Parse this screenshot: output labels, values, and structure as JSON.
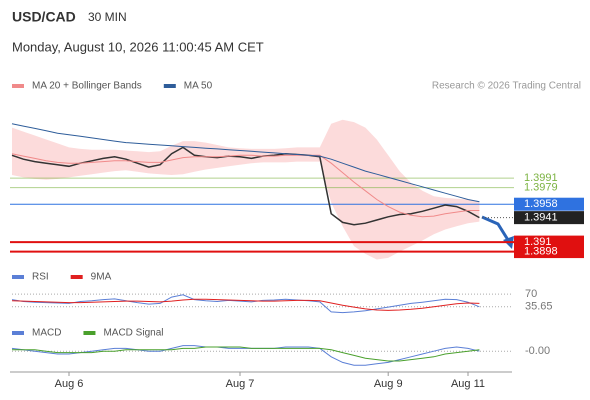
{
  "header": {
    "symbol": "USD/CAD",
    "timeframe": "30 MIN",
    "datetime": "Monday, August 10, 2026 11:00:45 AM CET"
  },
  "chart_data": [
    {
      "type": "line",
      "credit": "Research © 2026 Trading Central",
      "categories": [
        null,
        null,
        null,
        null,
        null,
        "Aug 6",
        null,
        null,
        null,
        null,
        null,
        null,
        null,
        null,
        null,
        null,
        null,
        null,
        null,
        null,
        "Aug 7",
        null,
        null,
        null,
        null,
        null,
        null,
        null,
        null,
        null,
        null,
        null,
        null,
        "Aug 9",
        null,
        null,
        null,
        null,
        null,
        null,
        "Aug 11",
        null
      ],
      "ylim": [
        1.3881,
        1.409
      ],
      "price": {
        "color": "#333333",
        "values": [
          1.402,
          1.4015,
          1.4012,
          1.401,
          1.4008,
          1.4006,
          1.401,
          1.4013,
          1.4016,
          1.4018,
          1.4015,
          1.401,
          1.4005,
          1.4008,
          1.4022,
          1.403,
          1.402,
          1.4018,
          1.4017,
          1.4019,
          1.4018,
          1.4016,
          1.4019,
          1.402,
          1.4022,
          1.4021,
          1.402,
          1.4018,
          1.3946,
          1.3935,
          1.3932,
          1.3934,
          1.3938,
          1.3942,
          1.3945,
          1.3946,
          1.3949,
          1.3953,
          1.3957,
          1.3955,
          1.3949,
          1.3941
        ]
      },
      "bands": {
        "color": "#fcd5d5",
        "upper": [
          1.4055,
          1.405,
          1.4045,
          1.404,
          1.4035,
          1.403,
          1.4028,
          1.4027,
          1.4027,
          1.4027,
          1.4026,
          1.4025,
          1.4024,
          1.4025,
          1.4032,
          1.4038,
          1.4038,
          1.4036,
          1.4033,
          1.403,
          1.4029,
          1.4028,
          1.4028,
          1.4028,
          1.4029,
          1.403,
          1.403,
          1.403,
          1.406,
          1.4065,
          1.4062,
          1.4055,
          1.404,
          1.402,
          1.4,
          1.3985,
          1.3975,
          1.3968,
          1.3966,
          1.3965,
          1.3964,
          1.3962
        ],
        "lower": [
          1.3995,
          1.3992,
          1.399,
          1.3989,
          1.399,
          1.3992,
          1.3994,
          1.3996,
          1.3998,
          1.4,
          1.4001,
          1.3999,
          1.3997,
          1.3996,
          1.3995,
          1.3996,
          1.3999,
          1.4002,
          1.4004,
          1.4006,
          1.4008,
          1.401,
          1.4011,
          1.4011,
          1.4011,
          1.4012,
          1.4012,
          1.4012,
          1.396,
          1.393,
          1.3905,
          1.3895,
          1.3888,
          1.389,
          1.3898,
          1.3905,
          1.3912,
          1.392,
          1.3926,
          1.393,
          1.3934,
          1.3936
        ]
      },
      "series": [
        {
          "name": "MA 20 + Bollinger Bands",
          "color": "#f08a8a",
          "values": [
            1.4022,
            1.4019,
            1.4016,
            1.4013,
            1.4011,
            1.401,
            1.401,
            1.4011,
            1.4012,
            1.4013,
            1.4013,
            1.4012,
            1.4011,
            1.4011,
            1.4014,
            1.4017,
            1.4018,
            1.4018,
            1.4018,
            1.4019,
            1.402,
            1.402,
            1.4019,
            1.4019,
            1.402,
            1.402,
            1.402,
            1.402,
            1.401,
            1.3998,
            1.3986,
            1.3975,
            1.3964,
            1.3955,
            1.3948,
            1.3944,
            1.3942,
            1.3943,
            1.3946,
            1.3948,
            1.395,
            1.395
          ]
        },
        {
          "name": "MA 50",
          "color": "#2e5d9a",
          "values": [
            1.406,
            1.4057,
            1.4054,
            1.4051,
            1.4048,
            1.4046,
            1.4044,
            1.4042,
            1.404,
            1.4038,
            1.4036,
            1.4035,
            1.4034,
            1.4033,
            1.4032,
            1.4031,
            1.403,
            1.4029,
            1.4028,
            1.4027,
            1.4026,
            1.4025,
            1.4024,
            1.4023,
            1.4022,
            1.4021,
            1.402,
            1.4019,
            1.4015,
            1.401,
            1.4005,
            1.4,
            1.3996,
            1.3992,
            1.3988,
            1.3984,
            1.398,
            1.3976,
            1.3972,
            1.3968,
            1.3964,
            1.3961
          ]
        }
      ],
      "levels": [
        {
          "value": 1.3991,
          "color": "#7cb342",
          "style": "text"
        },
        {
          "value": 1.3979,
          "color": "#7cb342",
          "style": "text"
        },
        {
          "value": 1.3958,
          "color": "#2f72e0",
          "style": "box"
        },
        {
          "value": 1.3941,
          "color": "#222222",
          "style": "last"
        },
        {
          "value": 1.391,
          "color": "#e01010",
          "style": "box"
        },
        {
          "value": 1.3898,
          "color": "#e01010",
          "style": "box"
        }
      ]
    },
    {
      "type": "line",
      "ylim": [
        0,
        100
      ],
      "yticks": [
        70,
        35.65
      ],
      "series": [
        {
          "name": "RSI",
          "color": "#5b7fd6",
          "values": [
            55,
            50,
            48,
            47,
            46,
            45,
            50,
            52,
            55,
            57,
            52,
            47,
            43,
            45,
            62,
            68,
            55,
            52,
            50,
            53,
            51,
            49,
            53,
            54,
            56,
            54,
            52,
            49,
            22,
            20,
            22,
            25,
            30,
            35,
            40,
            45,
            48,
            52,
            56,
            55,
            48,
            35.65
          ]
        },
        {
          "name": "9MA",
          "color": "#e02020",
          "values": [
            52,
            51,
            50,
            49,
            48,
            47,
            47,
            48,
            49,
            50,
            51,
            51,
            50,
            49,
            51,
            54,
            56,
            56,
            55,
            54,
            53,
            52,
            51,
            51,
            52,
            53,
            53,
            52,
            46,
            40,
            35,
            30,
            27,
            26,
            27,
            29,
            32,
            36,
            40,
            44,
            46,
            45
          ]
        }
      ]
    },
    {
      "type": "line",
      "ylim": [
        -0.0012,
        0.0008
      ],
      "yticks": [
        {
          "value": 0,
          "label": "-0.00"
        }
      ],
      "series": [
        {
          "name": "MACD",
          "color": "#5b7fd6",
          "values": [
            0.0002,
            0.0001,
            0.0,
            -0.0001,
            -0.0002,
            -0.0002,
            -0.0001,
            0.0,
            0.0001,
            0.0002,
            0.0002,
            0.0001,
            0.0,
            0.0,
            0.0002,
            0.0004,
            0.0004,
            0.0003,
            0.0003,
            0.0002,
            0.0002,
            0.0002,
            0.0002,
            0.0002,
            0.0003,
            0.0003,
            0.0003,
            0.0002,
            -0.0004,
            -0.0008,
            -0.001,
            -0.001,
            -0.0009,
            -0.0008,
            -0.0006,
            -0.0004,
            -0.0002,
            0.0,
            0.0002,
            0.0003,
            0.0002,
            0.0
          ]
        },
        {
          "name": "MACD Signal",
          "color": "#4aa02c",
          "values": [
            0.0001,
            0.0001,
            0.0001,
            0.0,
            -0.0001,
            -0.0001,
            -0.0001,
            -0.0001,
            0.0,
            0.0,
            0.0001,
            0.0001,
            0.0001,
            0.0001,
            0.0001,
            0.0002,
            0.0002,
            0.0003,
            0.0003,
            0.0003,
            0.0003,
            0.0002,
            0.0002,
            0.0002,
            0.0002,
            0.0002,
            0.0002,
            0.0002,
            0.0001,
            -0.0001,
            -0.0003,
            -0.0005,
            -0.0006,
            -0.0007,
            -0.0007,
            -0.0006,
            -0.0005,
            -0.0004,
            -0.0002,
            -0.0001,
            0.0,
            0.0001
          ]
        }
      ]
    }
  ]
}
